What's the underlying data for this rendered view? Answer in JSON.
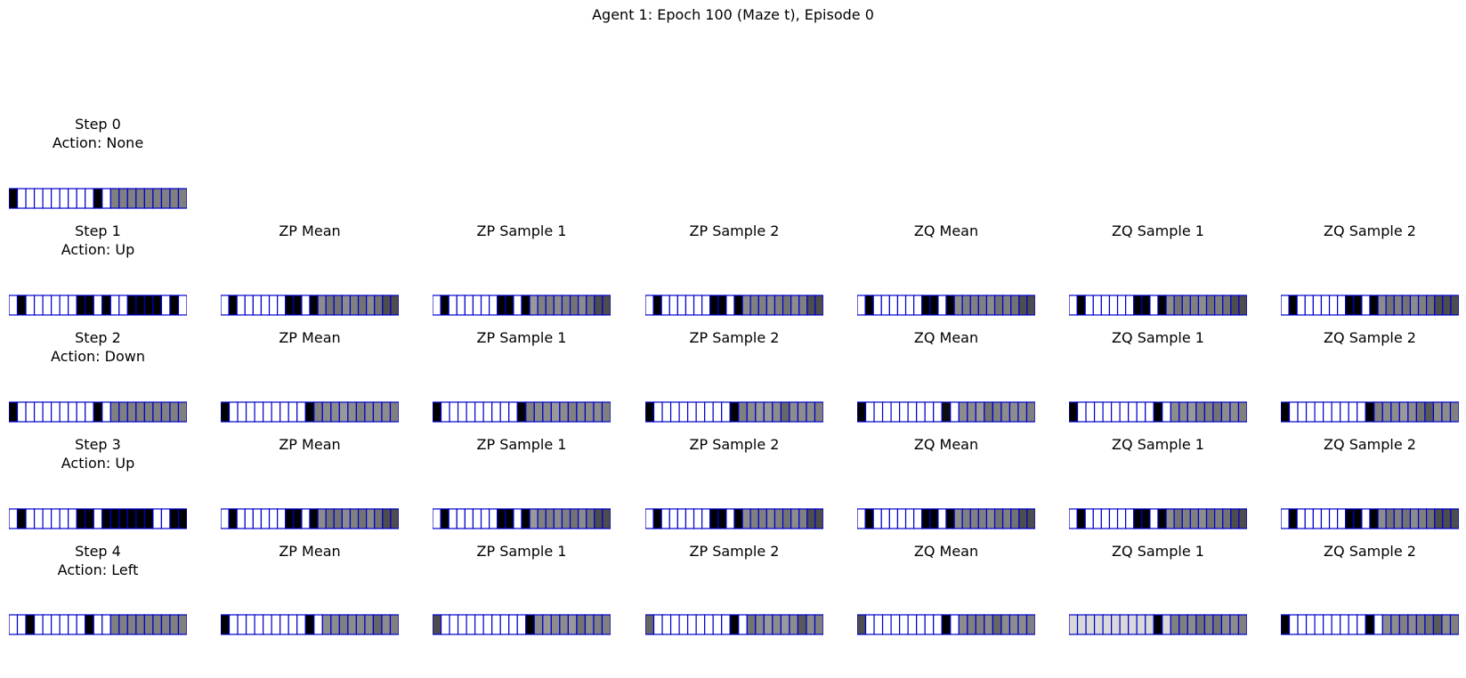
{
  "figure": {
    "title": "Agent 1: Epoch 100 (Maze t), Episode 0"
  },
  "colors": {
    "grid_line": "#0000cc",
    "black": "#000000",
    "white": "#ffffff"
  },
  "column_titles": [
    "ZP Mean",
    "ZP Sample 1",
    "ZP Sample 2",
    "ZQ Mean",
    "ZQ Sample 1",
    "ZQ Sample 2"
  ],
  "steps": [
    {
      "title": "Step 0\nAction: None",
      "panels": [
        {
          "cells": [
            0,
            1,
            1,
            1,
            1,
            1,
            1,
            1,
            1,
            1,
            0,
            1,
            0.5,
            0.5,
            0.5,
            0.5,
            0.5,
            0.5,
            0.5,
            0.5,
            0.5
          ]
        }
      ]
    },
    {
      "title": "Step 1\nAction: Up",
      "panels": [
        {
          "cells": [
            1,
            0,
            1,
            1,
            1,
            1,
            1,
            1,
            0,
            0,
            1,
            0,
            1,
            1,
            0,
            0,
            0,
            0,
            1,
            0,
            1
          ]
        },
        {
          "cells": [
            1,
            0,
            1,
            1,
            1,
            1,
            1,
            1,
            0,
            0,
            1,
            0,
            0.55,
            0.45,
            0.45,
            0.55,
            0.5,
            0.45,
            0.55,
            0.45,
            0.3,
            0.3
          ]
        },
        {
          "cells": [
            1,
            0,
            1,
            1,
            1,
            1,
            1,
            1,
            0,
            0,
            1,
            0,
            0.6,
            0.5,
            0.5,
            0.55,
            0.5,
            0.45,
            0.55,
            0.45,
            0.3,
            0.3
          ]
        },
        {
          "cells": [
            1,
            0,
            1,
            1,
            1,
            1,
            1,
            1,
            0,
            0,
            1,
            0,
            0.55,
            0.5,
            0.5,
            0.55,
            0.5,
            0.45,
            0.55,
            0.5,
            0.3,
            0.3
          ]
        },
        {
          "cells": [
            1,
            0,
            1,
            1,
            1,
            1,
            1,
            1,
            0,
            0,
            1,
            0,
            0.55,
            0.5,
            0.5,
            0.5,
            0.55,
            0.45,
            0.5,
            0.45,
            0.3,
            0.3
          ]
        },
        {
          "cells": [
            1,
            0,
            1,
            1,
            1,
            1,
            1,
            1,
            0,
            0,
            1,
            0,
            0.55,
            0.45,
            0.5,
            0.5,
            0.55,
            0.45,
            0.5,
            0.45,
            0.3,
            0.3
          ]
        },
        {
          "cells": [
            1,
            0,
            1,
            1,
            1,
            1,
            1,
            1,
            0,
            0,
            1,
            0,
            0.55,
            0.45,
            0.5,
            0.45,
            0.55,
            0.5,
            0.45,
            0.3,
            0.3,
            0.3
          ]
        }
      ]
    },
    {
      "title": "Step 2\nAction: Down",
      "panels": [
        {
          "cells": [
            0,
            1,
            1,
            1,
            1,
            1,
            1,
            1,
            1,
            1,
            0,
            1,
            0.5,
            0.5,
            0.5,
            0.5,
            0.5,
            0.5,
            0.5,
            0.5,
            0.5
          ]
        },
        {
          "cells": [
            0,
            1,
            1,
            1,
            1,
            1,
            1,
            1,
            1,
            1,
            0,
            0.5,
            0.55,
            0.55,
            0.6,
            0.55,
            0.5,
            0.55,
            0.55,
            0.55,
            0.5
          ]
        },
        {
          "cells": [
            0,
            1,
            1,
            1,
            1,
            1,
            1,
            1,
            1,
            1,
            0,
            0.5,
            0.55,
            0.55,
            0.6,
            0.55,
            0.5,
            0.55,
            0.55,
            0.55,
            0.5
          ]
        },
        {
          "cells": [
            0,
            1,
            1,
            1,
            1,
            1,
            1,
            1,
            1,
            1,
            0,
            0.5,
            0.55,
            0.6,
            0.6,
            0.55,
            0.4,
            0.55,
            0.55,
            0.55,
            0.5
          ]
        },
        {
          "cells": [
            0,
            1,
            1,
            1,
            1,
            1,
            1,
            1,
            1,
            1,
            0.05,
            1,
            0.55,
            0.55,
            0.6,
            0.45,
            0.5,
            0.55,
            0.55,
            0.55,
            0.5
          ]
        },
        {
          "cells": [
            0,
            1,
            1,
            1,
            1,
            1,
            1,
            1,
            1,
            1,
            0,
            1,
            0.55,
            0.55,
            0.6,
            0.5,
            0.5,
            0.45,
            0.55,
            0.55,
            0.5
          ]
        },
        {
          "cells": [
            0,
            1,
            1,
            1,
            1,
            1,
            1,
            1,
            1,
            1,
            0,
            0.5,
            0.55,
            0.55,
            0.6,
            0.55,
            0.45,
            0.35,
            0.55,
            0.55,
            0.5
          ]
        }
      ]
    },
    {
      "title": "Step 3\nAction: Up",
      "panels": [
        {
          "cells": [
            1,
            0,
            1,
            1,
            1,
            1,
            1,
            1,
            0,
            0,
            1,
            0,
            0,
            0,
            0,
            0,
            0,
            1,
            1,
            0,
            0
          ]
        },
        {
          "cells": [
            1,
            0,
            1,
            1,
            1,
            1,
            1,
            1,
            0,
            0,
            1,
            0,
            0.55,
            0.45,
            0.45,
            0.55,
            0.5,
            0.45,
            0.55,
            0.45,
            0.3,
            0.3
          ]
        },
        {
          "cells": [
            1,
            0,
            1,
            1,
            1,
            1,
            1,
            1,
            0,
            0,
            1,
            0,
            0.6,
            0.5,
            0.5,
            0.55,
            0.5,
            0.45,
            0.55,
            0.45,
            0.3,
            0.3
          ]
        },
        {
          "cells": [
            1,
            0,
            1,
            1,
            1,
            1,
            1,
            1,
            0,
            0,
            1,
            0,
            0.55,
            0.5,
            0.5,
            0.55,
            0.5,
            0.45,
            0.55,
            0.5,
            0.3,
            0.3
          ]
        },
        {
          "cells": [
            1,
            0,
            1,
            1,
            1,
            1,
            1,
            1,
            0,
            0,
            1,
            0,
            0.55,
            0.5,
            0.5,
            0.5,
            0.55,
            0.45,
            0.5,
            0.45,
            0.3,
            0.3
          ]
        },
        {
          "cells": [
            1,
            0,
            1,
            1,
            1,
            1,
            1,
            1,
            0,
            0,
            1,
            0,
            0.55,
            0.45,
            0.5,
            0.5,
            0.55,
            0.45,
            0.5,
            0.45,
            0.3,
            0.3
          ]
        },
        {
          "cells": [
            1,
            0,
            1,
            1,
            1,
            1,
            1,
            1,
            0,
            0,
            1,
            0,
            0.55,
            0.45,
            0.5,
            0.45,
            0.55,
            0.5,
            0.45,
            0.3,
            0.3,
            0.3
          ]
        }
      ]
    },
    {
      "title": "Step 4\nAction: Left",
      "panels": [
        {
          "cells": [
            1,
            1,
            0,
            1,
            1,
            1,
            1,
            1,
            1,
            0,
            1,
            1,
            0.5,
            0.5,
            0.5,
            0.5,
            0.5,
            0.5,
            0.5,
            0.5,
            0.5
          ]
        },
        {
          "cells": [
            0,
            1,
            1,
            1,
            1,
            1,
            1,
            1,
            1,
            1,
            0,
            1,
            0.55,
            0.55,
            0.5,
            0.55,
            0.55,
            0.55,
            0.4,
            0.55,
            0.5
          ]
        },
        {
          "cells": [
            0.3,
            1,
            1,
            1,
            1,
            1,
            1,
            1,
            1,
            1,
            1,
            0,
            0.55,
            0.6,
            0.55,
            0.55,
            0.6,
            0.45,
            0.55,
            0.5,
            0.5
          ]
        },
        {
          "cells": [
            0.4,
            1,
            1,
            1,
            1,
            1,
            1,
            1,
            1,
            1,
            0,
            1,
            0.45,
            0.55,
            0.6,
            0.55,
            0.6,
            0.55,
            0.35,
            0.55,
            0.5
          ]
        },
        {
          "cells": [
            0.3,
            1,
            1,
            1,
            1,
            1,
            1,
            1,
            1,
            1,
            0,
            1,
            0.55,
            0.5,
            0.5,
            0.55,
            0.4,
            0.55,
            0.55,
            0.55,
            0.5
          ]
        },
        {
          "cells": [
            0.85,
            0.85,
            0.85,
            0.85,
            0.85,
            0.85,
            0.85,
            0.85,
            0.85,
            0.85,
            0,
            0.85,
            0.5,
            0.5,
            0.55,
            0.45,
            0.5,
            0.45,
            0.55,
            0.55,
            0.5
          ]
        },
        {
          "cells": [
            0,
            1,
            1,
            1,
            1,
            1,
            1,
            1,
            1,
            1,
            0,
            1,
            0.55,
            0.55,
            0.5,
            0.55,
            0.5,
            0.45,
            0.35,
            0.55,
            0.5
          ]
        }
      ]
    }
  ]
}
